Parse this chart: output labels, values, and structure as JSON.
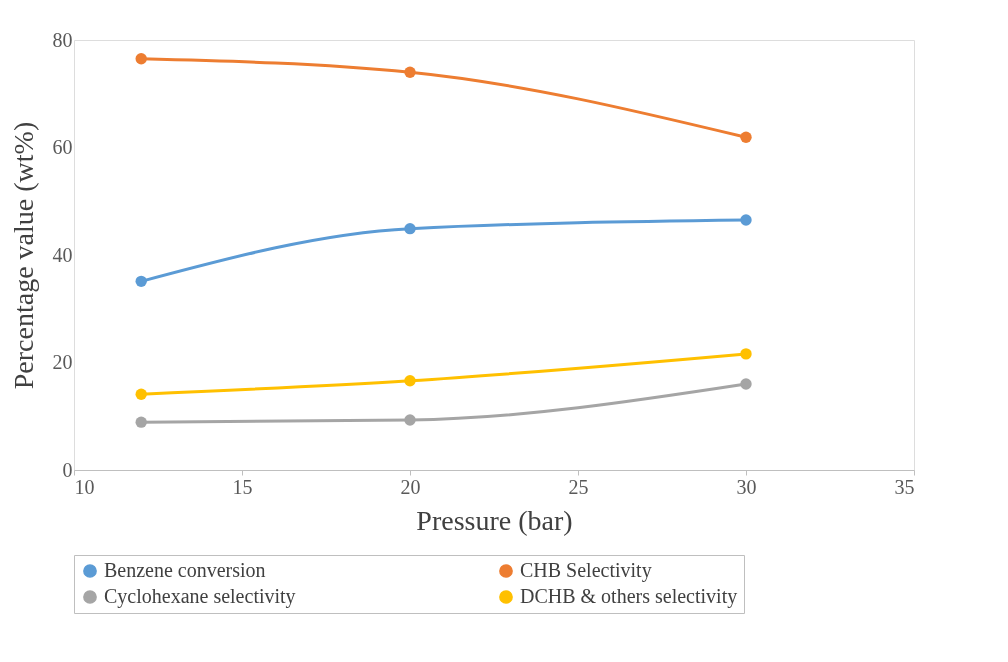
{
  "chart_data": {
    "type": "line",
    "xlabel": "Pressure (bar)",
    "ylabel": "Percentage value (wt%)",
    "x": [
      12,
      20,
      30
    ],
    "series": [
      {
        "name": "Benzene conversion",
        "color": "#5b9bd5",
        "values": [
          35.1,
          44.9,
          46.5
        ]
      },
      {
        "name": "CHB Selectivity",
        "color": "#ed7d31",
        "values": [
          76.5,
          74.0,
          61.9
        ]
      },
      {
        "name": "Cyclohexane selectivity",
        "color": "#a5a5a5",
        "values": [
          8.9,
          9.3,
          16.0
        ]
      },
      {
        "name": "DCHB & others selectivity",
        "color": "#ffc000",
        "values": [
          14.1,
          16.6,
          21.6
        ]
      }
    ],
    "xlim": [
      10,
      35
    ],
    "xticks": [
      10,
      15,
      20,
      25,
      30,
      35
    ],
    "ylim": [
      0,
      80
    ],
    "yticks": [
      0,
      20,
      40,
      60,
      80
    ],
    "grid": false,
    "legend": "bottom",
    "marker": "circle",
    "line_style": "solid"
  }
}
